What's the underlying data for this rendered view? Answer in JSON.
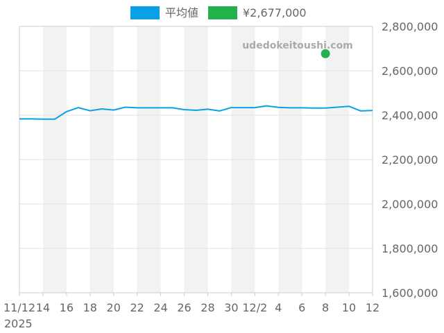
{
  "chart_data": {
    "type": "line",
    "legend": [
      {
        "label": "平均値",
        "color": "#0aa0e6",
        "kind": "series"
      },
      {
        "label": "¥2,677,000",
        "color": "#22b14c",
        "kind": "marker"
      }
    ],
    "legend_position": "top-center",
    "watermark": "udedokeitoushi.com",
    "x_ticks": [
      {
        "day": 0,
        "label": "11/12",
        "sublabel": "2025"
      },
      {
        "day": 2,
        "label": "14"
      },
      {
        "day": 4,
        "label": "16"
      },
      {
        "day": 6,
        "label": "18"
      },
      {
        "day": 8,
        "label": "20"
      },
      {
        "day": 10,
        "label": "22"
      },
      {
        "day": 12,
        "label": "24"
      },
      {
        "day": 14,
        "label": "26"
      },
      {
        "day": 16,
        "label": "28"
      },
      {
        "day": 18,
        "label": "30"
      },
      {
        "day": 20,
        "label": "12/2"
      },
      {
        "day": 22,
        "label": "4"
      },
      {
        "day": 24,
        "label": "6"
      },
      {
        "day": 26,
        "label": "8"
      },
      {
        "day": 28,
        "label": "10"
      },
      {
        "day": 30,
        "label": "12"
      }
    ],
    "x_range": [
      0,
      30
    ],
    "y_range": [
      1600000,
      2800000
    ],
    "y_ticks": [
      {
        "value": 2800000,
        "label": "2,800,000"
      },
      {
        "value": 2600000,
        "label": "2,600,000"
      },
      {
        "value": 2400000,
        "label": "2,400,000"
      },
      {
        "value": 2200000,
        "label": "2,200,000"
      },
      {
        "value": 2000000,
        "label": "2,000,000"
      },
      {
        "value": 1800000,
        "label": "1,800,000"
      },
      {
        "value": 1600000,
        "label": "1,600,000"
      }
    ],
    "y_axis_position": "right",
    "grid": true,
    "shaded_bands_days": [
      [
        2,
        4
      ],
      [
        6,
        8
      ],
      [
        10,
        12
      ],
      [
        14,
        16
      ],
      [
        18,
        20
      ],
      [
        22,
        24
      ],
      [
        26,
        28
      ],
      [
        30,
        32
      ]
    ],
    "series": [
      {
        "name": "平均値",
        "color": "#0aa0e6",
        "points": [
          [
            0,
            2383000
          ],
          [
            1,
            2383000
          ],
          [
            2,
            2382000
          ],
          [
            3,
            2382000
          ],
          [
            4,
            2416000
          ],
          [
            5,
            2434000
          ],
          [
            6,
            2420000
          ],
          [
            7,
            2428000
          ],
          [
            8,
            2423000
          ],
          [
            9,
            2436000
          ],
          [
            10,
            2433000
          ],
          [
            11,
            2433000
          ],
          [
            12,
            2433000
          ],
          [
            13,
            2433000
          ],
          [
            14,
            2425000
          ],
          [
            15,
            2422000
          ],
          [
            16,
            2427000
          ],
          [
            17,
            2419000
          ],
          [
            18,
            2434000
          ],
          [
            19,
            2434000
          ],
          [
            20,
            2434000
          ],
          [
            21,
            2442000
          ],
          [
            22,
            2435000
          ],
          [
            23,
            2433000
          ],
          [
            24,
            2433000
          ],
          [
            25,
            2432000
          ],
          [
            26,
            2432000
          ],
          [
            27,
            2436000
          ],
          [
            28,
            2440000
          ],
          [
            29,
            2419000
          ],
          [
            30,
            2421000
          ]
        ]
      }
    ],
    "markers": [
      {
        "name": "¥2,677,000",
        "day": 26,
        "value": 2677000,
        "color": "#22b14c"
      }
    ]
  }
}
